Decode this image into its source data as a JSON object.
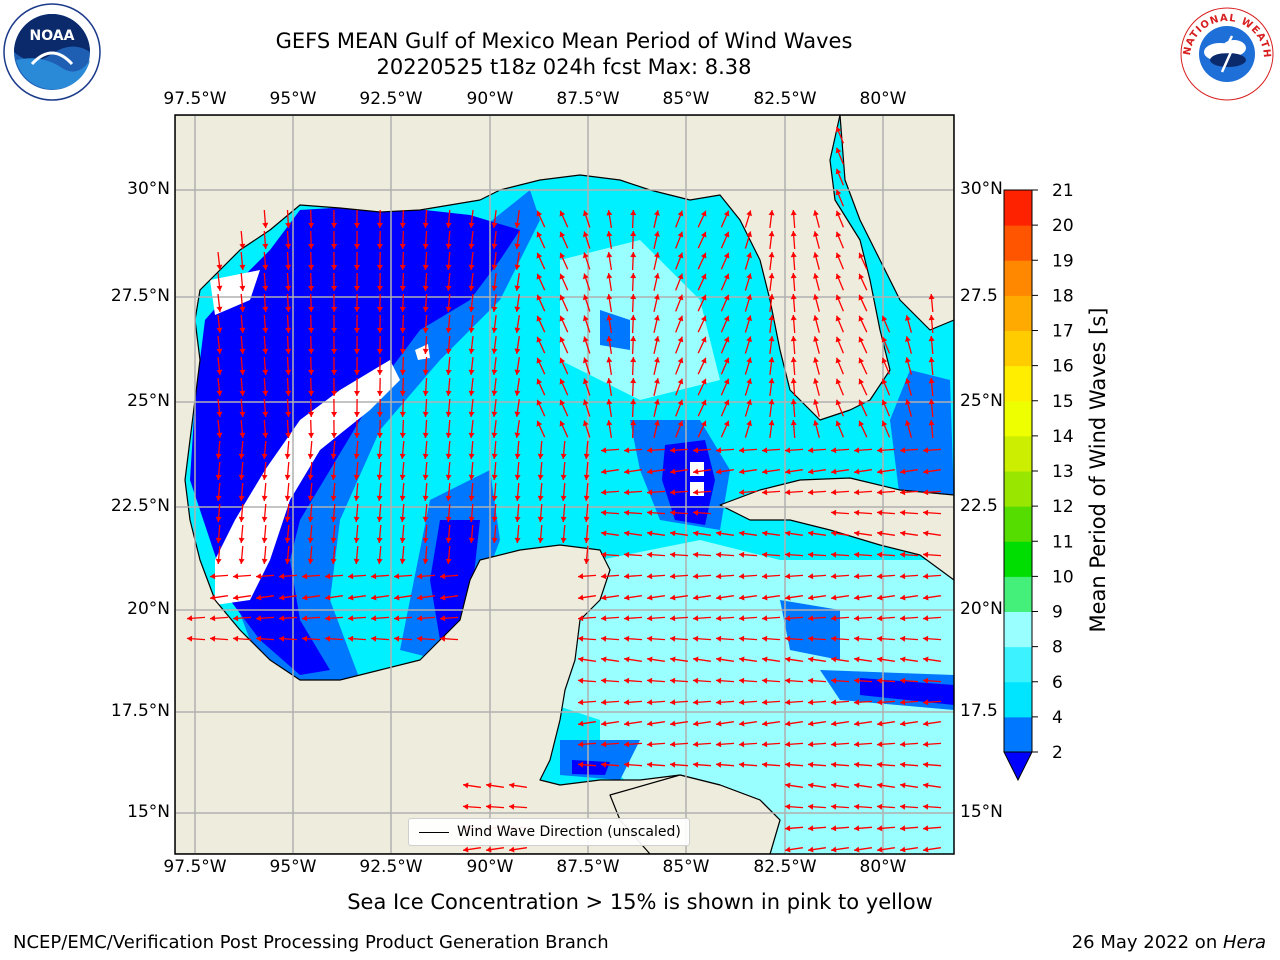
{
  "title": {
    "line1": "GEFS MEAN Gulf of Mexico Mean Period of Wind Waves",
    "line2": "20220525 t18z 024h fcst   Max: 8.38"
  },
  "logos": {
    "left": {
      "icon": "noaa-logo",
      "text": "NOAA"
    },
    "right": {
      "icon": "nws-logo",
      "text": "NATIONAL WEATHER SERVICE"
    }
  },
  "axes": {
    "x_ticks": [
      "97.5°W",
      "95°W",
      "92.5°W",
      "90°W",
      "87.5°W",
      "85°W",
      "82.5°W",
      "80°W"
    ],
    "y_ticks_left": [
      "30°N",
      "27.5°N",
      "25°N",
      "22.5°N",
      "20°N",
      "17.5°N",
      "15°N"
    ],
    "y_ticks_right": [
      "30°N",
      "27.5",
      "25°N",
      "22.5",
      "20°N",
      "17.5",
      "15°N"
    ]
  },
  "legend": {
    "label": "Wind Wave Direction (unscaled)"
  },
  "colorbar": {
    "label": "Mean Period of Wind Waves [s]",
    "ticks": [
      "2",
      "4",
      "6",
      "8",
      "9",
      "10",
      "11",
      "12",
      "13",
      "14",
      "15",
      "16",
      "17",
      "18",
      "19",
      "20",
      "21"
    ],
    "colors": [
      "#0077ff",
      "#00e5ff",
      "#3df2ff",
      "#99ffff",
      "#44f07a",
      "#00dd00",
      "#55dd00",
      "#99e600",
      "#ccee00",
      "#eeff00",
      "#ffee00",
      "#ffcc00",
      "#ffaa00",
      "#ff8800",
      "#ff5500",
      "#ff2200",
      "#ff0000"
    ],
    "under_color": "#0000ff"
  },
  "colors": {
    "land": "#eeecdc",
    "ocean_low": "#0000ff",
    "ocean_mid": "#0077ff",
    "ocean_cyan": "#00f0ff",
    "ocean_light": "#99ffff",
    "arrow": "#ff0000",
    "grid": "#b0b0b0"
  },
  "subtitle": "Sea Ice Concentration > 15% is shown in pink to yellow",
  "footer": {
    "left": "NCEP/EMC/Verification Post Processing Product Generation Branch",
    "right_prefix": "26 May 2022 on ",
    "right_machine": "Hera"
  }
}
